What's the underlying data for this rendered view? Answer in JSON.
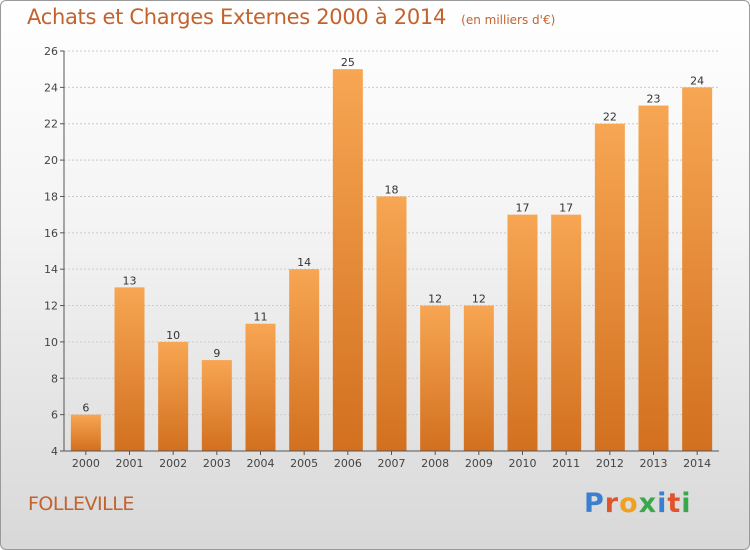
{
  "header": {
    "title": "Achats et Charges Externes 2000 à 2014",
    "unit": "(en milliers d'€)"
  },
  "footer": {
    "city": "FOLLEVILLE",
    "brand": "Proxiti",
    "brand_colors": [
      "#3a7fd0",
      "#e0542c",
      "#f0a020",
      "#3aa84a",
      "#3a7fd0",
      "#e0542c",
      "#3aa84a"
    ]
  },
  "colors": {
    "title": "#c4622d",
    "bar_top": "#f7a653",
    "bar_bottom": "#d2701f",
    "axis": "#555555",
    "grid": "#cccccc"
  },
  "chart_data": {
    "type": "bar",
    "title": "Achats et Charges Externes 2000 à 2014",
    "subtitle": "(en milliers d'€)",
    "xlabel": "",
    "ylabel": "",
    "categories": [
      "2000",
      "2001",
      "2002",
      "2003",
      "2004",
      "2005",
      "2006",
      "2007",
      "2008",
      "2009",
      "2010",
      "2011",
      "2012",
      "2013",
      "2014"
    ],
    "values": [
      6,
      13,
      10,
      9,
      11,
      14,
      25,
      18,
      12,
      12,
      17,
      17,
      22,
      23,
      24
    ],
    "ylim": [
      4,
      26
    ],
    "yticks": [
      4,
      6,
      8,
      10,
      12,
      14,
      16,
      18,
      20,
      22,
      24,
      26
    ],
    "grid": true,
    "data_labels": true
  }
}
